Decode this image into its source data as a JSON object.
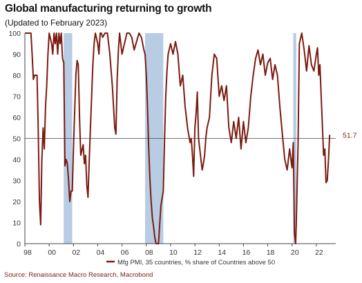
{
  "chart_data": {
    "type": "line",
    "title": "Global manufacturing returning to growth",
    "subtitle": "(Updated to February 2023)",
    "source": "Source: Renaissance Macro Research, Macrobond",
    "xlim": [
      1998.0,
      2023.6
    ],
    "ylim": [
      0,
      100
    ],
    "y_ticks": [
      0,
      10,
      20,
      30,
      40,
      50,
      60,
      70,
      80,
      90,
      100
    ],
    "x_ticks": [
      {
        "value": 1998,
        "label": "98"
      },
      {
        "value": 2000,
        "label": "00"
      },
      {
        "value": 2002,
        "label": "02"
      },
      {
        "value": 2004,
        "label": "04"
      },
      {
        "value": 2006,
        "label": "06"
      },
      {
        "value": 2008,
        "label": "08"
      },
      {
        "value": 2010,
        "label": "10"
      },
      {
        "value": 2012,
        "label": "12"
      },
      {
        "value": 2014,
        "label": "14"
      },
      {
        "value": 2016,
        "label": "16"
      },
      {
        "value": 2018,
        "label": "18"
      },
      {
        "value": 2020,
        "label": "20"
      },
      {
        "value": 2022,
        "label": "22"
      }
    ],
    "recession_shading": [
      {
        "start": 2001.2,
        "end": 2001.9
      },
      {
        "start": 2007.9,
        "end": 2009.4
      },
      {
        "start": 2020.1,
        "end": 2020.35
      }
    ],
    "reference_line": {
      "y": 50
    },
    "last_value_label": "51.7",
    "series": [
      {
        "name": "Mfg PMI, 35 countries, % share of Countries above 50",
        "color": "#7a1a10",
        "shading_color": "#b8cce4",
        "x": [
          1998.0,
          1998.5,
          1998.6,
          1998.7,
          1998.8,
          1999.0,
          1999.1,
          1999.2,
          1999.3,
          1999.4,
          1999.5,
          1999.6,
          1999.7,
          1999.8,
          1999.9,
          2000.0,
          2000.2,
          2000.3,
          2000.4,
          2000.5,
          2000.6,
          2000.7,
          2000.8,
          2000.9,
          2001.0,
          2001.1,
          2001.2,
          2001.3,
          2001.4,
          2001.5,
          2001.6,
          2001.7,
          2001.8,
          2001.9,
          2002.0,
          2002.2,
          2002.3,
          2002.4,
          2002.5,
          2002.6,
          2002.8,
          2002.9,
          2003.0,
          2003.1,
          2003.2,
          2003.3,
          2003.4,
          2003.6,
          2003.7,
          2003.8,
          2004.0,
          2004.1,
          2004.2,
          2004.3,
          2004.4,
          2004.6,
          2004.8,
          2005.0,
          2005.2,
          2005.4,
          2005.5,
          2005.6,
          2005.7,
          2005.8,
          2006.0,
          2006.2,
          2006.4,
          2006.6,
          2006.8,
          2007.0,
          2007.2,
          2007.4,
          2007.6,
          2007.8,
          2007.9,
          2008.0,
          2008.1,
          2008.2,
          2008.3,
          2008.4,
          2008.5,
          2008.6,
          2008.7,
          2008.8,
          2008.9,
          2009.0,
          2009.2,
          2009.4,
          2009.5,
          2009.6,
          2009.7,
          2009.8,
          2010.0,
          2010.2,
          2010.4,
          2010.6,
          2010.8,
          2011.0,
          2011.2,
          2011.4,
          2011.6,
          2011.7,
          2011.8,
          2011.9,
          2012.0,
          2012.1,
          2012.2,
          2012.3,
          2012.5,
          2012.6,
          2012.7,
          2012.8,
          2012.9,
          2013.0,
          2013.2,
          2013.4,
          2013.6,
          2013.8,
          2014.0,
          2014.2,
          2014.4,
          2014.6,
          2014.8,
          2015.0,
          2015.2,
          2015.4,
          2015.6,
          2015.8,
          2016.0,
          2016.2,
          2016.4,
          2016.6,
          2016.8,
          2017.0,
          2017.2,
          2017.4,
          2017.6,
          2017.8,
          2018.0,
          2018.2,
          2018.4,
          2018.6,
          2018.8,
          2019.0,
          2019.2,
          2019.4,
          2019.6,
          2019.8,
          2020.0,
          2020.1,
          2020.2,
          2020.3,
          2020.35,
          2020.5,
          2020.6,
          2020.8,
          2021.0,
          2021.2,
          2021.4,
          2021.6,
          2021.8,
          2022.0,
          2022.1,
          2022.2,
          2022.3,
          2022.4,
          2022.5,
          2022.6,
          2022.7,
          2022.8,
          2022.9,
          2023.0,
          2023.1
        ],
        "values": [
          100,
          100,
          90,
          78,
          80,
          80,
          55,
          20,
          9,
          40,
          55,
          45,
          65,
          75,
          90,
          100,
          95,
          90,
          100,
          95,
          100,
          90,
          100,
          95,
          100,
          88,
          86,
          37,
          40,
          38,
          30,
          20,
          25,
          25,
          45,
          80,
          87,
          85,
          60,
          42,
          47,
          38,
          42,
          28,
          22,
          40,
          55,
          85,
          95,
          100,
          95,
          90,
          100,
          100,
          98,
          100,
          100,
          90,
          75,
          55,
          52,
          78,
          92,
          100,
          90,
          95,
          100,
          100,
          98,
          92,
          96,
          100,
          98,
          92,
          90,
          80,
          65,
          45,
          30,
          20,
          12,
          8,
          3,
          0,
          0,
          0,
          18,
          25,
          48,
          70,
          82,
          90,
          95,
          90,
          96,
          90,
          75,
          80,
          65,
          55,
          48,
          50,
          42,
          32,
          55,
          62,
          72,
          50,
          40,
          35,
          38,
          42,
          50,
          55,
          60,
          80,
          90,
          88,
          70,
          75,
          68,
          75,
          55,
          48,
          58,
          50,
          60,
          45,
          58,
          48,
          55,
          70,
          80,
          88,
          92,
          85,
          90,
          80,
          86,
          88,
          78,
          85,
          80,
          65,
          52,
          40,
          35,
          45,
          36,
          48,
          5,
          0,
          10,
          48,
          95,
          100,
          92,
          82,
          94,
          85,
          82,
          90,
          93,
          80,
          85,
          70,
          56,
          42,
          45,
          29,
          30,
          40,
          51.7
        ]
      }
    ]
  }
}
